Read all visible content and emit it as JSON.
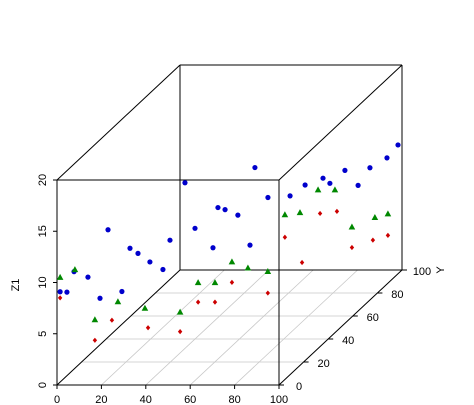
{
  "chart_data": {
    "type": "scatter3d",
    "zlabel": "Z1",
    "ylabel": "Y",
    "xlim": [
      0,
      100
    ],
    "ylim": [
      0,
      100
    ],
    "zlim": [
      0,
      20
    ],
    "xticks": [
      0,
      20,
      40,
      60,
      80,
      100
    ],
    "yticks": [
      0,
      20,
      40,
      60,
      80,
      100
    ],
    "zticks": [
      0,
      5,
      10,
      15,
      20
    ],
    "grid": true,
    "series": [
      {
        "color": "#0000cc",
        "marker": "circle",
        "x": [
          1.4,
          1.7,
          4.9,
          8.4,
          11.9,
          16.6,
          21.8,
          23.7,
          28,
          31.1,
          31.5,
          24.4,
          40,
          48.1,
          44.8,
          51,
          62,
          47.6,
          59,
          66.2,
          70.2,
          75.5,
          82.6,
          91.3,
          91.1,
          96,
          98.2,
          48,
          25.4,
          78.6
        ],
        "y": [
          0,
          5,
          5,
          10,
          20,
          5,
          20,
          10,
          25,
          30,
          35,
          60,
          40,
          40,
          50,
          55,
          45,
          75,
          65,
          70,
          75,
          80,
          85,
          80,
          90,
          95,
          100,
          50,
          20,
          80
        ],
        "z": [
          9.1,
          8.5,
          10.5,
          9.4,
          12.9,
          7.9,
          11.1,
          8.0,
          9.2,
          7.9,
          10.2,
          13.0,
          10.8,
          8.9,
          11.7,
          10.4,
          8.6,
          12.8,
          11.0,
          10.6,
          11.1,
          11.2,
          11.4,
          10.5,
          11.1,
          11.5,
          12.2,
          11.5,
          10.6,
          10.7
        ]
      },
      {
        "color": "#008800",
        "marker": "triangle",
        "x": [
          1.4,
          5.3,
          14.3,
          21.9,
          31.3,
          41.6,
          41.4,
          49,
          51.1,
          58.3,
          64.5,
          61.1,
          67.9,
          70.5,
          78.1,
          91.3,
          96.1,
          99.2
        ],
        "y": [
          0,
          5,
          5,
          10,
          15,
          25,
          40,
          40,
          50,
          50,
          55,
          75,
          75,
          85,
          85,
          75,
          85,
          90
        ],
        "z": [
          10.5,
          10.7,
          5.8,
          7.0,
          5.8,
          4.3,
          5.5,
          5.5,
          6.4,
          5.8,
          4.9,
          8.2,
          8.4,
          9.5,
          9.5,
          7.0,
          6.8,
          6.6
        ]
      },
      {
        "color": "#cc0000",
        "marker": "diamond",
        "x": [
          1.4,
          14.3,
          19.2,
          32.7,
          41.6,
          41.4,
          49,
          51.1,
          64.5,
          61.1,
          71.6,
          71.4,
          79,
          91.3,
          95.2,
          99.2
        ],
        "y": [
          0,
          5,
          10,
          15,
          25,
          40,
          40,
          50,
          55,
          75,
          70,
          85,
          85,
          75,
          85,
          90
        ],
        "z": [
          8.5,
          3.8,
          5.2,
          3.9,
          2.4,
          3.6,
          3.6,
          4.4,
          2.8,
          6.0,
          4.1,
          7.2,
          7.4,
          5.0,
          4.6,
          4.5
        ]
      }
    ]
  }
}
